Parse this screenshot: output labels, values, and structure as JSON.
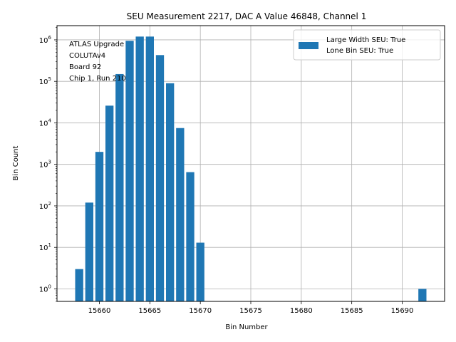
{
  "chart_data": {
    "type": "bar",
    "title": "SEU Measurement 2217, DAC A Value 46848, Channel 1",
    "xlabel": "Bin Number",
    "ylabel": "Bin Count",
    "yscale": "log",
    "xlim": [
      15655.8,
      15694.2
    ],
    "ylim": [
      0.5,
      2200000
    ],
    "x_ticks": [
      15660,
      15665,
      15670,
      15675,
      15680,
      15685,
      15690
    ],
    "x_tick_labels": [
      "15660",
      "15665",
      "15670",
      "15675",
      "15680",
      "15685",
      "15690"
    ],
    "y_ticks": [
      1,
      10,
      100,
      1000,
      10000,
      100000,
      1000000
    ],
    "y_tick_labels": [
      {
        "base": "10",
        "exp": "0"
      },
      {
        "base": "10",
        "exp": "1"
      },
      {
        "base": "10",
        "exp": "2"
      },
      {
        "base": "10",
        "exp": "3"
      },
      {
        "base": "10",
        "exp": "4"
      },
      {
        "base": "10",
        "exp": "5"
      },
      {
        "base": "10",
        "exp": "6"
      }
    ],
    "grid": true,
    "bar_color": "#1f77b4",
    "series": [
      {
        "name": "Large Width SEU: True\nLone Bin SEU: True",
        "x": [
          15658,
          15659,
          15660,
          15661,
          15662,
          15663,
          15664,
          15665,
          15666,
          15667,
          15668,
          15669,
          15670,
          15692
        ],
        "values": [
          3,
          120,
          2000,
          26000,
          150000,
          950000,
          1200000,
          1200000,
          430000,
          90000,
          7500,
          650,
          13,
          1
        ]
      }
    ],
    "legend": {
      "position": "top-right",
      "lines": [
        "Large Width SEU: True",
        "Lone Bin SEU: True"
      ]
    },
    "annotation": {
      "position": "top-left",
      "lines": [
        "ATLAS Upgrade",
        "COLUTAv4",
        " Board 92",
        "Chip 1, Run 210"
      ]
    }
  }
}
